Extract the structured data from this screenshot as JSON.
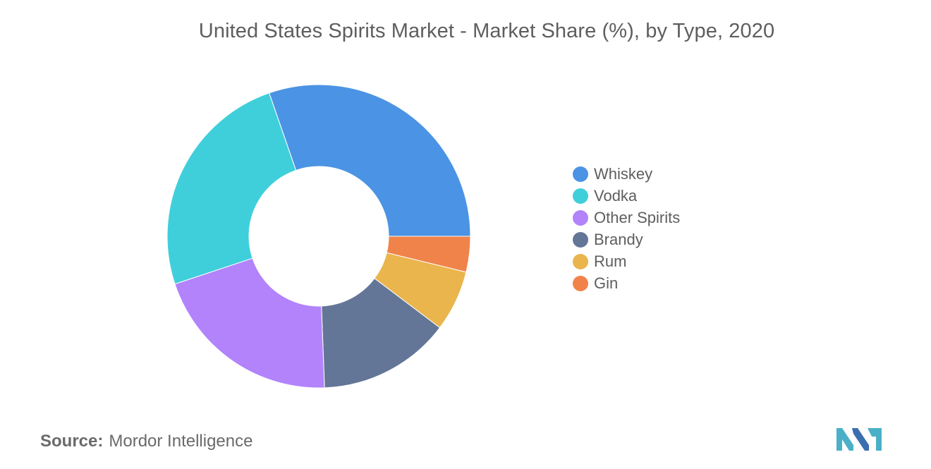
{
  "chart_data": {
    "type": "pie",
    "title": "United States Spirits Market - Market Share (%), by Type, 2020",
    "donut": true,
    "legend_position": "right",
    "start": "three-o'clock",
    "direction": "clockwise",
    "series": [
      {
        "name": "Gin",
        "value": 3.8,
        "color": "#f0834a"
      },
      {
        "name": "Rum",
        "value": 6.5,
        "color": "#e9b54c"
      },
      {
        "name": "Brandy",
        "value": 14.1,
        "color": "#647697"
      },
      {
        "name": "Other Spirits",
        "value": 20.5,
        "color": "#b283fb"
      },
      {
        "name": "Vodka",
        "value": 24.8,
        "color": "#3fcfdb"
      },
      {
        "name": "Whiskey",
        "value": 30.3,
        "color": "#4b93e4"
      }
    ],
    "legend_order": [
      "Whiskey",
      "Vodka",
      "Other Spirits",
      "Brandy",
      "Rum",
      "Gin"
    ]
  },
  "source": {
    "label": "Source:",
    "text": "Mordor Intelligence"
  },
  "logo": {
    "icon": "mordor-intelligence-logo-icon",
    "colors": [
      "#4ab0c8",
      "#3a6fb0"
    ]
  }
}
